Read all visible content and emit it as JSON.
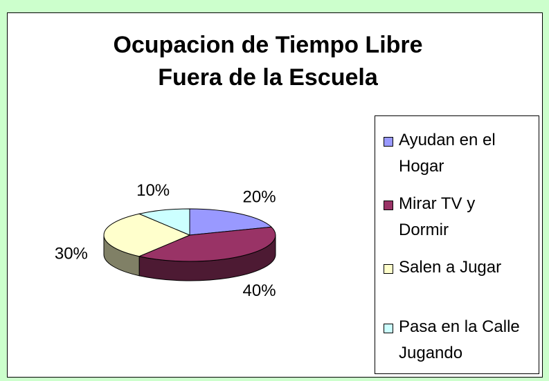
{
  "chart_data": {
    "type": "pie",
    "title": "Ocupacion de Tiempo Libre Fuera de la Escuela",
    "categories": [
      "Ayudan en el Hogar",
      "Mirar TV y Dormir",
      "Salen a Jugar",
      "Pasa en la Calle Jugando"
    ],
    "values": [
      20,
      40,
      30,
      10
    ],
    "value_labels": [
      "20%",
      "40%",
      "30%",
      "10%"
    ],
    "colors": [
      "#9999ff",
      "#993366",
      "#ffffcc",
      "#ccffff"
    ],
    "legend": "right"
  }
}
